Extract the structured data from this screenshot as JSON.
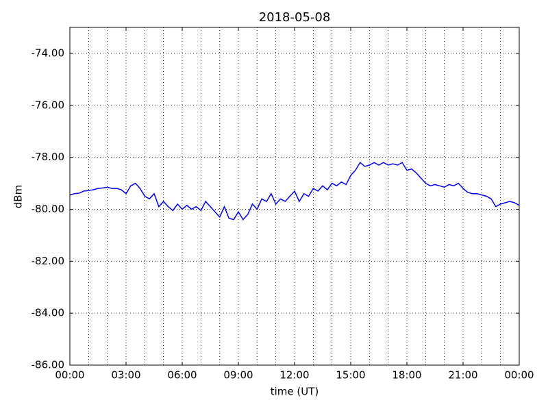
{
  "chart_data": {
    "type": "line",
    "title": "2018-05-08",
    "xlabel": "time (UT)",
    "ylabel": "dBm",
    "x": [
      0,
      0.25,
      0.5,
      0.75,
      1,
      1.25,
      1.5,
      1.75,
      2,
      2.25,
      2.5,
      2.75,
      3,
      3.25,
      3.5,
      3.75,
      4,
      4.25,
      4.5,
      4.75,
      5,
      5.25,
      5.5,
      5.75,
      6,
      6.25,
      6.5,
      6.75,
      7,
      7.25,
      7.5,
      7.75,
      8,
      8.25,
      8.5,
      8.75,
      9,
      9.25,
      9.5,
      9.75,
      10,
      10.25,
      10.5,
      10.75,
      11,
      11.25,
      11.5,
      11.75,
      12,
      12.25,
      12.5,
      12.75,
      13,
      13.25,
      13.5,
      13.75,
      14,
      14.25,
      14.5,
      14.75,
      15,
      15.25,
      15.5,
      15.75,
      16,
      16.25,
      16.5,
      16.75,
      17,
      17.25,
      17.5,
      17.75,
      18,
      18.25,
      18.5,
      18.75,
      19,
      19.25,
      19.5,
      19.75,
      20,
      20.25,
      20.5,
      20.75,
      21,
      21.25,
      21.5,
      21.75,
      22,
      22.25,
      22.5,
      22.75,
      23,
      23.25,
      23.5,
      23.75,
      24
    ],
    "series": [
      {
        "name": "dBm",
        "color": "#0000ff",
        "values": [
          -79.45,
          -79.4,
          -79.38,
          -79.3,
          -79.28,
          -79.25,
          -79.2,
          -79.18,
          -79.15,
          -79.2,
          -79.2,
          -79.25,
          -79.4,
          -79.1,
          -79.0,
          -79.2,
          -79.5,
          -79.6,
          -79.4,
          -79.9,
          -79.7,
          -79.9,
          -80.05,
          -79.8,
          -80.0,
          -79.85,
          -80.0,
          -79.9,
          -80.05,
          -79.7,
          -79.9,
          -80.1,
          -80.3,
          -79.9,
          -80.35,
          -80.4,
          -80.1,
          -80.4,
          -80.2,
          -79.8,
          -80.0,
          -79.6,
          -79.7,
          -79.4,
          -79.8,
          -79.6,
          -79.7,
          -79.5,
          -79.3,
          -79.7,
          -79.4,
          -79.5,
          -79.2,
          -79.3,
          -79.1,
          -79.25,
          -79.0,
          -79.1,
          -78.95,
          -79.05,
          -78.7,
          -78.5,
          -78.2,
          -78.35,
          -78.3,
          -78.2,
          -78.3,
          -78.2,
          -78.3,
          -78.25,
          -78.3,
          -78.2,
          -78.5,
          -78.45,
          -78.6,
          -78.8,
          -79.0,
          -79.1,
          -79.05,
          -79.1,
          -79.15,
          -79.05,
          -79.1,
          -79.0,
          -79.2,
          -79.35,
          -79.4,
          -79.4,
          -79.45,
          -79.5,
          -79.6,
          -79.9,
          -79.8,
          -79.75,
          -79.7,
          -79.75,
          -79.85
        ]
      }
    ],
    "xlim": [
      0,
      24
    ],
    "xticks": [
      {
        "value": 0,
        "label": "00:00"
      },
      {
        "value": 3,
        "label": "03:00"
      },
      {
        "value": 6,
        "label": "06:00"
      },
      {
        "value": 9,
        "label": "09:00"
      },
      {
        "value": 12,
        "label": "12:00"
      },
      {
        "value": 15,
        "label": "15:00"
      },
      {
        "value": 18,
        "label": "18:00"
      },
      {
        "value": 21,
        "label": "21:00"
      },
      {
        "value": 24,
        "label": "00:00"
      }
    ],
    "xminorticks": [
      1,
      2,
      4,
      5,
      7,
      8,
      10,
      11,
      13,
      14,
      16,
      17,
      19,
      20,
      22,
      23
    ],
    "ylim": [
      -86,
      -73
    ],
    "yticks": [
      {
        "value": -86,
        "label": "-86.00"
      },
      {
        "value": -84,
        "label": "-84.00"
      },
      {
        "value": -82,
        "label": "-82.00"
      },
      {
        "value": -80,
        "label": "-80.00"
      },
      {
        "value": -78,
        "label": "-78.00"
      },
      {
        "value": -76,
        "label": "-76.00"
      },
      {
        "value": -74,
        "label": "-74.00"
      }
    ],
    "grid": true
  }
}
